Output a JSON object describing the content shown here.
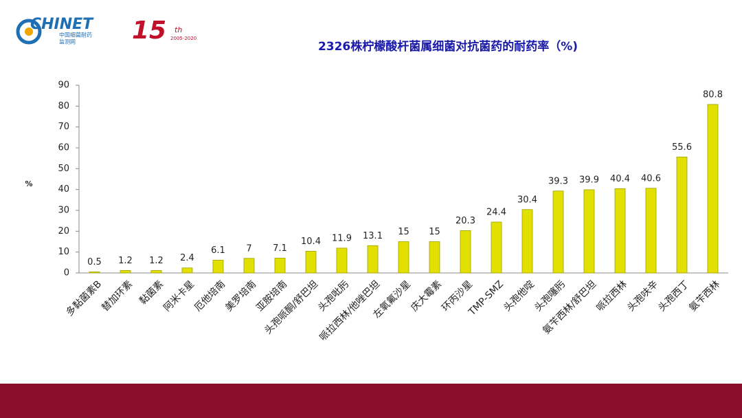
{
  "logo": {
    "name": "CHINET",
    "subtitle1": "中国细菌耐药",
    "subtitle2": "监测网",
    "anniversary": "15",
    "suffix": "th",
    "years": "2005-2020"
  },
  "chart_data": {
    "type": "bar",
    "title": "2326株柠檬酸杆菌属细菌对抗菌药的耐药率（%)",
    "y_label": "%",
    "categories": [
      "多黏菌素B",
      "替加环素",
      "黏菌素",
      "阿米卡星",
      "厄他培南",
      "美罗培南",
      "亚胺培南",
      "头孢哌酮/舒巴坦",
      "头孢吡肟",
      "哌拉西林/他唑巴坦",
      "左氧氟沙星",
      "庆大霉素",
      "环丙沙星",
      "TMP-SMZ",
      "头孢他啶",
      "头孢噻肟",
      "氨苄西林/舒巴坦",
      "哌拉西林",
      "头孢呋辛",
      "头孢西丁",
      "氨苄西林"
    ],
    "values": [
      0.5,
      1.2,
      1.2,
      2.4,
      6.1,
      7,
      7.1,
      10.4,
      11.9,
      13.1,
      15,
      15,
      20.3,
      24.4,
      30.4,
      39.3,
      39.9,
      40.4,
      40.6,
      55.6,
      80.8
    ],
    "color": "#e2e000",
    "ylim": [
      0,
      90
    ],
    "yticks": [
      0,
      10,
      20,
      30,
      40,
      50,
      60,
      70,
      80,
      90
    ],
    "grid": false
  }
}
